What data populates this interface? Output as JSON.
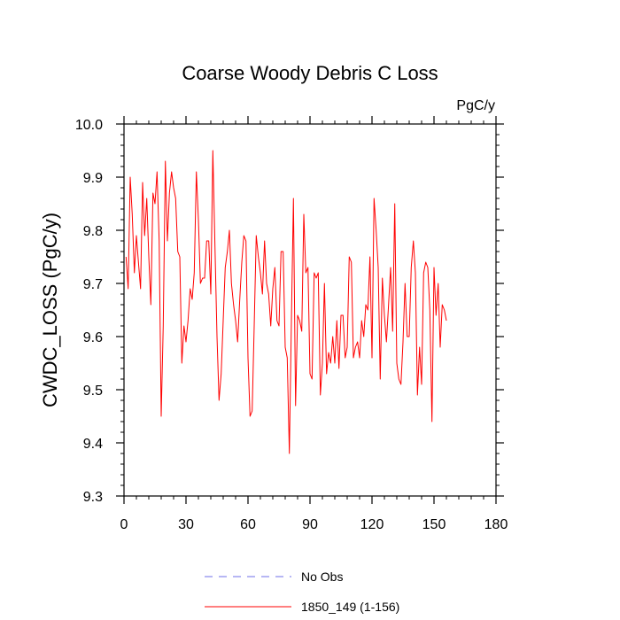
{
  "chart_data": {
    "type": "line",
    "title": "Coarse Woody Debris C Loss",
    "units_label": "PgC/y",
    "ylabel": "CWDC_LOSS  (PgC/y)",
    "xlabel": "",
    "xlim": [
      0,
      180
    ],
    "ylim": [
      9.3,
      10.0
    ],
    "x_ticks": [
      0,
      30,
      60,
      90,
      120,
      150,
      180
    ],
    "x_tick_labels": [
      "0",
      "30",
      "60",
      "90",
      "120",
      "150",
      "180"
    ],
    "y_ticks": [
      9.3,
      9.4,
      9.5,
      9.6,
      9.7,
      9.8,
      9.9,
      10.0
    ],
    "y_tick_labels": [
      "9.3",
      "9.4",
      "9.5",
      "9.6",
      "9.7",
      "9.8",
      "9.9",
      "10.0"
    ],
    "grid": false,
    "legend_position": "bottom",
    "series": [
      {
        "name": "No Obs",
        "color": "#6f6fe8",
        "dash": "dashed",
        "x": [],
        "values": []
      },
      {
        "name": "1850_149 (1-156)",
        "color": "#ff0000",
        "dash": "solid",
        "x": [
          1,
          2,
          3,
          4,
          5,
          6,
          7,
          8,
          9,
          10,
          11,
          12,
          13,
          14,
          15,
          16,
          17,
          18,
          19,
          20,
          21,
          22,
          23,
          24,
          25,
          26,
          27,
          28,
          29,
          30,
          31,
          32,
          33,
          34,
          35,
          36,
          37,
          38,
          39,
          40,
          41,
          42,
          43,
          44,
          45,
          46,
          47,
          48,
          49,
          50,
          51,
          52,
          53,
          54,
          55,
          56,
          57,
          58,
          59,
          60,
          61,
          62,
          63,
          64,
          65,
          66,
          67,
          68,
          69,
          70,
          71,
          72,
          73,
          74,
          75,
          76,
          77,
          78,
          79,
          80,
          81,
          82,
          83,
          84,
          85,
          86,
          87,
          88,
          89,
          90,
          91,
          92,
          93,
          94,
          95,
          96,
          97,
          98,
          99,
          100,
          101,
          102,
          103,
          104,
          105,
          106,
          107,
          108,
          109,
          110,
          111,
          112,
          113,
          114,
          115,
          116,
          117,
          118,
          119,
          120,
          121,
          122,
          123,
          124,
          125,
          126,
          127,
          128,
          129,
          130,
          131,
          132,
          133,
          134,
          135,
          136,
          137,
          138,
          139,
          140,
          141,
          142,
          143,
          144,
          145,
          146,
          147,
          148,
          149,
          150,
          151,
          152,
          153,
          154,
          155,
          156
        ],
        "values": [
          9.75,
          9.69,
          9.9,
          9.83,
          9.72,
          9.79,
          9.74,
          9.69,
          9.89,
          9.79,
          9.86,
          9.75,
          9.66,
          9.87,
          9.85,
          9.91,
          9.78,
          9.45,
          9.62,
          9.93,
          9.78,
          9.87,
          9.91,
          9.88,
          9.86,
          9.76,
          9.75,
          9.55,
          9.62,
          9.59,
          9.63,
          9.69,
          9.67,
          9.72,
          9.91,
          9.82,
          9.7,
          9.71,
          9.71,
          9.78,
          9.78,
          9.68,
          9.95,
          9.77,
          9.6,
          9.48,
          9.53,
          9.63,
          9.73,
          9.76,
          9.8,
          9.7,
          9.66,
          9.63,
          9.59,
          9.67,
          9.74,
          9.79,
          9.78,
          9.56,
          9.45,
          9.46,
          9.62,
          9.79,
          9.75,
          9.72,
          9.68,
          9.78,
          9.7,
          9.68,
          9.62,
          9.69,
          9.73,
          9.63,
          9.62,
          9.76,
          9.76,
          9.58,
          9.56,
          9.38,
          9.63,
          9.86,
          9.47,
          9.64,
          9.63,
          9.61,
          9.83,
          9.72,
          9.73,
          9.53,
          9.52,
          9.72,
          9.71,
          9.72,
          9.49,
          9.55,
          9.7,
          9.53,
          9.57,
          9.55,
          9.6,
          9.55,
          9.63,
          9.54,
          9.64,
          9.64,
          9.56,
          9.58,
          9.75,
          9.74,
          9.56,
          9.58,
          9.59,
          9.56,
          9.63,
          9.6,
          9.66,
          9.65,
          9.75,
          9.56,
          9.86,
          9.8,
          9.73,
          9.52,
          9.71,
          9.64,
          9.59,
          9.66,
          9.73,
          9.61,
          9.85,
          9.55,
          9.52,
          9.51,
          9.59,
          9.7,
          9.6,
          9.6,
          9.73,
          9.78,
          9.72,
          9.49,
          9.58,
          9.51,
          9.72,
          9.74,
          9.73,
          9.65,
          9.44,
          9.73,
          9.64,
          9.7,
          9.58,
          9.66,
          9.65,
          9.63
        ]
      }
    ]
  }
}
